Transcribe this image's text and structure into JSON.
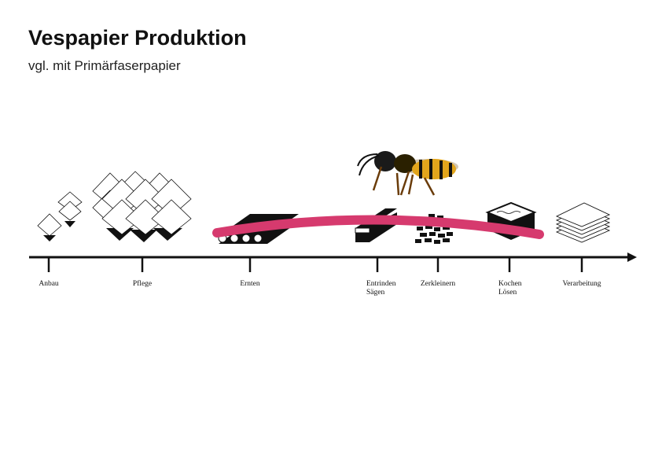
{
  "header": {
    "title": "Vespapier Produktion",
    "subtitle": "vgl. mit Primärfaserpapier"
  },
  "timeline": {
    "steps": [
      {
        "lines": [
          "Anbau"
        ]
      },
      {
        "lines": [
          "Pflege"
        ]
      },
      {
        "lines": [
          "Ernten"
        ]
      },
      {
        "lines": [
          "Entrinden",
          "Sägen"
        ]
      },
      {
        "lines": [
          "Zerkleinern"
        ]
      },
      {
        "lines": [
          "Kochen",
          "Lösen"
        ]
      },
      {
        "lines": [
          "Verarbeitung"
        ]
      }
    ]
  }
}
